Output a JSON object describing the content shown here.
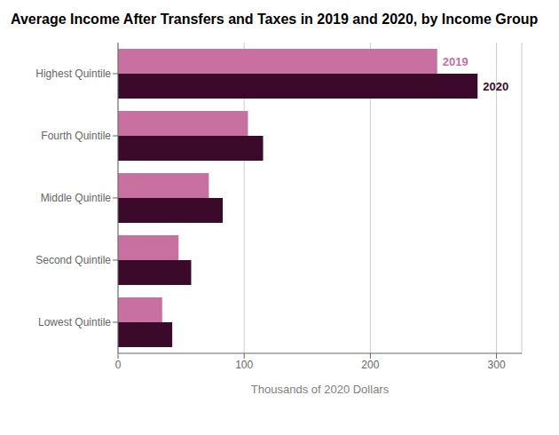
{
  "chart_data": {
    "type": "bar",
    "orientation": "horizontal",
    "title": "Average Income After Transfers and Taxes in 2019 and 2020, by Income Group",
    "categories": [
      "Highest Quintile",
      "Fourth Quintile",
      "Middle Quintile",
      "Second Quintile",
      "Lowest Quintile"
    ],
    "series": [
      {
        "name": "2019",
        "color": "#c870a0",
        "values": [
          253,
          103,
          72,
          48,
          35
        ]
      },
      {
        "name": "2020",
        "color": "#3b0a2a",
        "values": [
          285,
          115,
          83,
          58,
          43
        ]
      }
    ],
    "xlabel": "Thousands of 2020 Dollars",
    "xlim": [
      0,
      320
    ],
    "xticks": [
      0,
      100,
      200,
      300
    ],
    "grid": true
  }
}
